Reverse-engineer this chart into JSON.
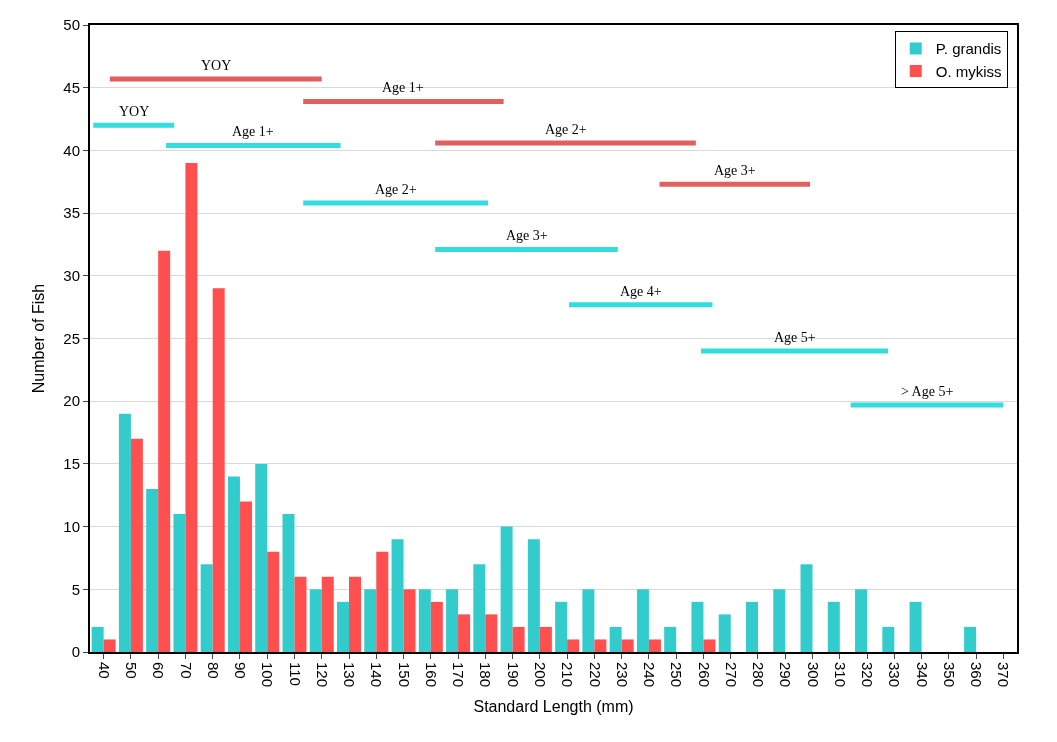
{
  "chart_data": {
    "type": "bar",
    "xlabel": "Standard Length (mm)",
    "ylabel": "Number of Fish",
    "x": [
      40,
      50,
      60,
      70,
      80,
      90,
      100,
      110,
      120,
      130,
      140,
      150,
      160,
      170,
      180,
      190,
      200,
      210,
      220,
      230,
      240,
      250,
      260,
      270,
      280,
      290,
      300,
      310,
      320,
      330,
      340,
      350,
      360
    ],
    "xlim": [
      35,
      375
    ],
    "xticks": [
      40,
      50,
      60,
      70,
      80,
      90,
      100,
      110,
      120,
      130,
      140,
      150,
      160,
      170,
      180,
      190,
      200,
      210,
      220,
      230,
      240,
      250,
      260,
      270,
      280,
      290,
      300,
      310,
      320,
      330,
      340,
      350,
      360,
      370
    ],
    "ylim": [
      0,
      50
    ],
    "yticks": [
      0,
      5,
      10,
      15,
      20,
      25,
      30,
      35,
      40,
      45,
      50
    ],
    "grid": "y",
    "legend": "top right",
    "series": [
      {
        "name": "P. grandis",
        "color": "#33cccc",
        "values": [
          2,
          19,
          13,
          11,
          7,
          14,
          15,
          11,
          5,
          4,
          5,
          9,
          5,
          5,
          7,
          10,
          9,
          4,
          5,
          2,
          5,
          2,
          4,
          3,
          4,
          5,
          7,
          4,
          5,
          2,
          4,
          null,
          2
        ]
      },
      {
        "name": "O. mykiss",
        "color": "#ff4f4f",
        "values": [
          1,
          17,
          32,
          39,
          29,
          12,
          8,
          6,
          6,
          6,
          8,
          5,
          4,
          3,
          3,
          2,
          2,
          1,
          1,
          1,
          1,
          null,
          1,
          null,
          null,
          null,
          null,
          null,
          null,
          null,
          null,
          null,
          null
        ]
      },
      {
        "type": "line",
        "name": "YOY",
        "color": "#e06060",
        "x": [
          42.3,
          120.0
        ],
        "values": [
          45.7,
          45.7
        ]
      },
      {
        "type": "line",
        "name": "Age 1+",
        "color": "#e06060",
        "x": [
          113.2,
          186.7
        ],
        "values": [
          43.9,
          43.9
        ]
      },
      {
        "type": "line",
        "name": "Age 2+",
        "color": "#e06060",
        "x": [
          161.6,
          257.2
        ],
        "values": [
          40.6,
          40.6
        ]
      },
      {
        "type": "line",
        "name": "Age 3+",
        "color": "#e06060",
        "x": [
          243.9,
          299.1
        ],
        "values": [
          37.3,
          37.3
        ]
      },
      {
        "type": "line",
        "name": "YOY",
        "color": "#33dddd",
        "x": [
          36.2,
          65.9
        ],
        "values": [
          42.0,
          42.0
        ]
      },
      {
        "type": "line",
        "name": "Age 1+",
        "color": "#33dddd",
        "x": [
          62.9,
          126.9
        ],
        "values": [
          40.4,
          40.4
        ]
      },
      {
        "type": "line",
        "name": "Age 2+",
        "color": "#33dddd",
        "x": [
          113.2,
          181.0
        ],
        "values": [
          35.8,
          35.8
        ]
      },
      {
        "type": "line",
        "name": "Age 3+",
        "color": "#33dddd",
        "x": [
          161.6,
          228.6
        ],
        "values": [
          32.1,
          32.1
        ]
      },
      {
        "type": "line",
        "name": "Age 4+",
        "color": "#33dddd",
        "x": [
          210.7,
          263.3
        ],
        "values": [
          27.7,
          27.7
        ]
      },
      {
        "type": "line",
        "name": "Age 5+",
        "color": "#33dddd",
        "x": [
          259.1,
          327.7
        ],
        "values": [
          24.0,
          24.0
        ]
      },
      {
        "type": "line",
        "name": "> Age 5+",
        "color": "#33dddd",
        "x": [
          314.0,
          370.0
        ],
        "values": [
          19.7,
          19.7
        ]
      }
    ]
  }
}
